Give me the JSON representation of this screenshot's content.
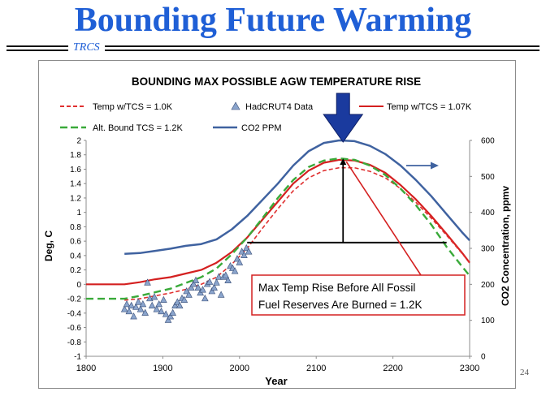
{
  "slide": {
    "title": "Bounding Future Warming",
    "brand": "TRCS",
    "page_number": "24"
  },
  "chart_data": {
    "type": "line",
    "title": "BOUNDING MAX POSSIBLE  AGW TEMPERATURE RISE",
    "xlabel": "Year",
    "ylabel": "Deg, C",
    "y2label": "CO2 Concentration, ppmv",
    "xlim": [
      1800,
      2300
    ],
    "ylim": [
      -1,
      2
    ],
    "y2lim": [
      0,
      600
    ],
    "xticks": [
      1800,
      1900,
      2000,
      2100,
      2200,
      2300
    ],
    "yticks": [
      -1,
      -0.8,
      -0.6,
      -0.4,
      -0.2,
      0,
      0.2,
      0.4,
      0.6,
      0.8,
      1,
      1.2,
      1.4,
      1.6,
      1.8,
      2
    ],
    "ytick_labels": [
      "-1",
      "-0.8",
      "-0.6",
      "-0.4",
      "-0.2",
      "0",
      "0.2",
      "0.4",
      "0.6",
      "0.8",
      "1",
      "1.2",
      "1.4",
      "1.6",
      "1.8",
      "2"
    ],
    "y2ticks": [
      0,
      100,
      200,
      300,
      400,
      500,
      600
    ],
    "grid": false,
    "legend": [
      {
        "name": "Temp w/TCS = 1.0K",
        "color": "#e03030",
        "style": "dashed"
      },
      {
        "name": "HadCRUT4 Data",
        "color": "#8aa4cc",
        "style": "triangle"
      },
      {
        "name": "Temp w/TCS = 1.07K",
        "color": "#d42020",
        "style": "solid"
      },
      {
        "name": "Alt. Bound TCS = 1.2K",
        "color": "#3aaa3a",
        "style": "long-dash"
      },
      {
        "name": "CO2 PPM",
        "color": "#3f62a0",
        "style": "solid"
      }
    ],
    "series": [
      {
        "name": "CO2 PPM",
        "axis": "y2",
        "color": "#3f62a0",
        "x": [
          1850,
          1870,
          1890,
          1910,
          1930,
          1950,
          1970,
          1990,
          2010,
          2030,
          2050,
          2070,
          2090,
          2110,
          2130,
          2150,
          2170,
          2190,
          2210,
          2230,
          2250,
          2270,
          2290,
          2300
        ],
        "y": [
          285,
          287,
          293,
          299,
          307,
          312,
          325,
          353,
          390,
          435,
          480,
          530,
          570,
          593,
          600,
          598,
          585,
          562,
          530,
          490,
          445,
          395,
          345,
          322
        ]
      },
      {
        "name": "Temp w/TCS = 1.07K",
        "axis": "y",
        "color": "#d42020",
        "x": [
          1800,
          1850,
          1870,
          1890,
          1910,
          1930,
          1950,
          1970,
          1990,
          2010,
          2030,
          2050,
          2070,
          2090,
          2110,
          2130,
          2150,
          2170,
          2190,
          2210,
          2230,
          2250,
          2270,
          2290,
          2300
        ],
        "y": [
          0,
          0,
          0.03,
          0.07,
          0.1,
          0.15,
          0.2,
          0.3,
          0.45,
          0.65,
          0.9,
          1.15,
          1.4,
          1.58,
          1.69,
          1.73,
          1.72,
          1.66,
          1.55,
          1.38,
          1.18,
          0.95,
          0.7,
          0.44,
          0.3
        ]
      },
      {
        "name": "Temp w/TCS = 1.0K",
        "axis": "y",
        "color": "#e03030",
        "x": [
          1850,
          1870,
          1890,
          1910,
          1930,
          1950,
          1970,
          1990,
          2010,
          2030,
          2050,
          2070,
          2090,
          2110,
          2130,
          2150,
          2170,
          2190,
          2210,
          2230,
          2250,
          2270,
          2290,
          2300
        ],
        "y": [
          -0.22,
          -0.2,
          -0.16,
          -0.12,
          -0.07,
          0,
          0.1,
          0.28,
          0.5,
          0.78,
          1.05,
          1.3,
          1.48,
          1.58,
          1.62,
          1.62,
          1.57,
          1.48,
          1.33,
          1.14,
          0.92,
          0.68,
          0.43,
          0.3
        ]
      },
      {
        "name": "Alt. Bound TCS = 1.2K",
        "axis": "y",
        "color": "#3aaa3a",
        "x": [
          1800,
          1850,
          1870,
          1890,
          1910,
          1930,
          1950,
          1970,
          1990,
          2010,
          2030,
          2050,
          2070,
          2090,
          2110,
          2130,
          2150,
          2170,
          2190,
          2210,
          2230,
          2250,
          2270,
          2290,
          2300
        ],
        "y": [
          -0.2,
          -0.2,
          -0.16,
          -0.11,
          -0.06,
          0.02,
          0.1,
          0.22,
          0.42,
          0.65,
          0.92,
          1.2,
          1.45,
          1.63,
          1.72,
          1.75,
          1.73,
          1.65,
          1.52,
          1.33,
          1.1,
          0.83,
          0.52,
          0.25,
          0.12
        ]
      },
      {
        "name": "HadCRUT4 Data",
        "axis": "y",
        "color": "#8aa4cc",
        "marker": "triangle",
        "x": [
          1850,
          1853,
          1856,
          1859,
          1862,
          1865,
          1868,
          1871,
          1874,
          1877,
          1880,
          1883,
          1886,
          1889,
          1892,
          1895,
          1898,
          1901,
          1904,
          1907,
          1910,
          1913,
          1916,
          1919,
          1922,
          1925,
          1928,
          1931,
          1934,
          1937,
          1940,
          1943,
          1946,
          1949,
          1952,
          1955,
          1958,
          1961,
          1964,
          1967,
          1970,
          1973,
          1976,
          1979,
          1982,
          1985,
          1988,
          1991,
          1994,
          1997,
          2000,
          2003,
          2006,
          2009,
          2012
        ],
        "y": [
          -0.35,
          -0.28,
          -0.38,
          -0.3,
          -0.45,
          -0.32,
          -0.25,
          -0.35,
          -0.28,
          -0.4,
          0.02,
          -0.2,
          -0.3,
          -0.18,
          -0.35,
          -0.28,
          -0.38,
          -0.22,
          -0.42,
          -0.5,
          -0.45,
          -0.4,
          -0.3,
          -0.25,
          -0.3,
          -0.2,
          -0.22,
          -0.1,
          -0.15,
          -0.05,
          0.0,
          0.05,
          -0.05,
          -0.12,
          -0.08,
          -0.2,
          0.0,
          0.03,
          -0.1,
          -0.05,
          0.02,
          0.1,
          -0.15,
          0.1,
          0.12,
          0.05,
          0.25,
          0.22,
          0.18,
          0.35,
          0.3,
          0.45,
          0.4,
          0.5,
          0.45
        ]
      }
    ],
    "annotations": {
      "callout_text": "Max Temp Rise Before All Fossil Fuel Reserves Are Burned = 1.2K",
      "callout_line1": "Max Temp Rise Before All Fossil",
      "callout_line2": "Fuel Reserves Are Burned = 1.2K",
      "baseline_year_range": [
        2010,
        2270
      ],
      "baseline_temp": 0.58,
      "peak_year": 2135,
      "peak_temp": 1.75,
      "big_arrow_color": "#1a3a9e",
      "co2_axis_arrow_color": "#3f62a0"
    }
  }
}
